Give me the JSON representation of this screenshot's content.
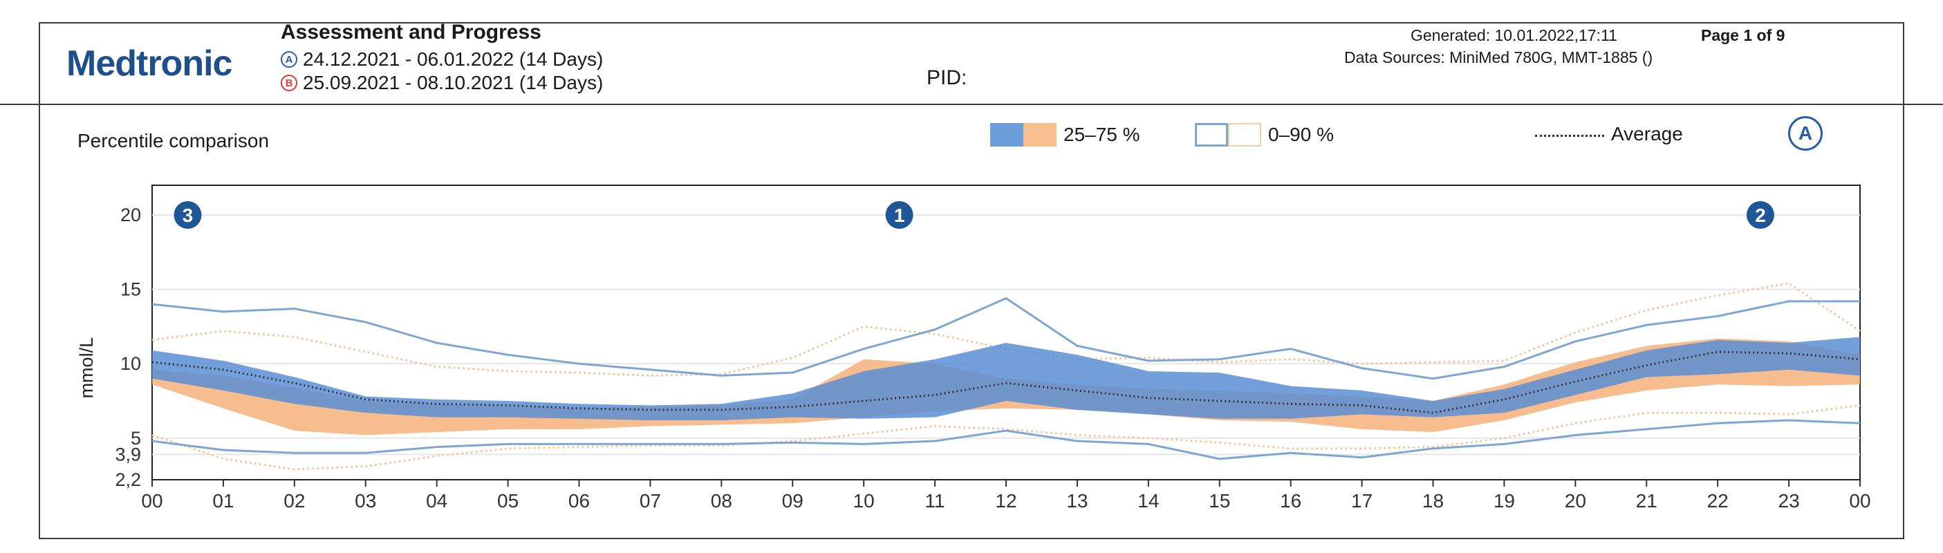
{
  "header": {
    "logo_text": "Medtronic",
    "report_title": "Assessment and Progress",
    "range_a": {
      "badge": "A",
      "text": "24.12.2021 - 06.01.2022 (14 Days)"
    },
    "range_b": {
      "badge": "B",
      "text": "25.09.2021 - 08.10.2021 (14 Days)"
    },
    "pid_label": "PID:",
    "generated": "Generated: 10.01.2022,17:11",
    "page": "Page 1 of 9",
    "data_sources": "Data Sources: MiniMed 780G, MMT-1885 ()"
  },
  "section": {
    "subtitle": "Percentile comparison",
    "badge": "A"
  },
  "legend": {
    "iqr_label": "25–75 %",
    "range_label": "0–90 %",
    "avg_label": "Average"
  },
  "colors": {
    "period_a": "#5b8fd3",
    "period_a_line": "#7ea6d4",
    "period_b": "#f6b27a",
    "period_b_line": "#f3c9a0",
    "average": "#333333",
    "marker": "#1f5796"
  },
  "chart_data": {
    "type": "area",
    "title": "Percentile comparison",
    "xlabel": "",
    "ylabel": "mmol/L",
    "xlim": [
      0,
      24
    ],
    "ylim": [
      2.2,
      22
    ],
    "x_ticks": [
      "00",
      "01",
      "02",
      "03",
      "04",
      "05",
      "06",
      "07",
      "08",
      "09",
      "10",
      "11",
      "12",
      "13",
      "14",
      "15",
      "16",
      "17",
      "18",
      "19",
      "20",
      "21",
      "22",
      "23",
      "00"
    ],
    "y_ticks": [
      {
        "value": 20,
        "label": "20"
      },
      {
        "value": 15,
        "label": "15"
      },
      {
        "value": 10,
        "label": "10"
      },
      {
        "value": 5,
        "label": "5"
      },
      {
        "value": 3.9,
        "label": "3,9"
      },
      {
        "value": 2.2,
        "label": "2,2"
      }
    ],
    "grid": true,
    "hours": [
      0,
      1,
      2,
      3,
      4,
      5,
      6,
      7,
      8,
      9,
      10,
      11,
      12,
      13,
      14,
      15,
      16,
      17,
      18,
      19,
      20,
      21,
      22,
      23,
      24
    ],
    "series": [
      {
        "name": "A",
        "band": "25–75 %",
        "low": [
          9.0,
          8.2,
          7.3,
          6.7,
          6.4,
          6.4,
          6.3,
          6.2,
          6.2,
          6.4,
          6.3,
          6.4,
          7.5,
          6.9,
          6.6,
          6.3,
          6.3,
          6.6,
          6.4,
          6.7,
          7.9,
          9.1,
          9.3,
          9.6,
          9.2
        ],
        "high": [
          10.9,
          10.2,
          9.1,
          7.8,
          7.6,
          7.5,
          7.3,
          7.2,
          7.3,
          8.0,
          9.5,
          10.3,
          11.4,
          10.6,
          9.5,
          9.4,
          8.5,
          8.2,
          7.5,
          8.3,
          9.6,
          10.9,
          11.6,
          11.4,
          11.8
        ]
      },
      {
        "name": "A",
        "band": "0–90 %",
        "low": [
          4.8,
          4.2,
          4.0,
          4.0,
          4.4,
          4.6,
          4.6,
          4.6,
          4.6,
          4.7,
          4.6,
          4.8,
          5.5,
          4.8,
          4.6,
          3.6,
          4.0,
          3.7,
          4.3,
          4.6,
          5.2,
          5.6,
          6.0,
          6.2,
          6.0
        ],
        "high": [
          14.0,
          13.5,
          13.7,
          12.8,
          11.4,
          10.6,
          10.0,
          9.6,
          9.2,
          9.4,
          11.0,
          12.3,
          14.4,
          11.2,
          10.2,
          10.3,
          11.0,
          9.7,
          9.0,
          9.8,
          11.5,
          12.6,
          13.2,
          14.2,
          14.2
        ]
      },
      {
        "name": "B",
        "band": "25–75 %",
        "low": [
          8.6,
          7.0,
          5.5,
          5.2,
          5.4,
          5.6,
          5.6,
          5.8,
          5.9,
          6.0,
          6.4,
          6.8,
          7.0,
          6.9,
          6.6,
          6.2,
          6.1,
          5.6,
          5.4,
          6.2,
          7.4,
          8.2,
          8.6,
          8.5,
          8.6
        ],
        "high": [
          9.6,
          9.2,
          8.4,
          7.5,
          7.3,
          7.1,
          7.0,
          7.1,
          7.2,
          7.6,
          10.3,
          10.0,
          9.0,
          8.6,
          8.3,
          8.2,
          8.0,
          7.8,
          7.5,
          8.6,
          10.1,
          11.2,
          11.7,
          11.5,
          10.6
        ]
      },
      {
        "name": "B",
        "band": "0–90 %",
        "low": [
          5.2,
          3.6,
          2.9,
          3.1,
          3.8,
          4.3,
          4.4,
          4.5,
          4.5,
          4.8,
          5.3,
          5.8,
          5.6,
          5.2,
          5.0,
          4.7,
          4.3,
          4.3,
          4.4,
          5.0,
          6.0,
          6.7,
          6.7,
          6.6,
          7.2
        ],
        "high": [
          11.6,
          12.2,
          11.8,
          10.8,
          9.8,
          9.5,
          9.4,
          9.2,
          9.3,
          10.4,
          12.5,
          12.0,
          11.0,
          10.3,
          10.4,
          10.1,
          10.3,
          10.0,
          10.1,
          10.2,
          12.1,
          13.6,
          14.6,
          15.4,
          12.2
        ]
      },
      {
        "name": "A",
        "band": "Average",
        "values": [
          10.1,
          9.6,
          8.7,
          7.6,
          7.3,
          7.2,
          7.0,
          6.9,
          6.9,
          7.1,
          7.5,
          7.9,
          8.7,
          8.2,
          7.7,
          7.5,
          7.3,
          7.2,
          6.7,
          7.6,
          8.8,
          9.9,
          10.8,
          10.7,
          10.3
        ]
      }
    ],
    "markers": [
      {
        "label": "3",
        "x": 0.5,
        "y": 20
      },
      {
        "label": "1",
        "x": 10.5,
        "y": 20
      },
      {
        "label": "2",
        "x": 22.6,
        "y": 20
      }
    ]
  }
}
